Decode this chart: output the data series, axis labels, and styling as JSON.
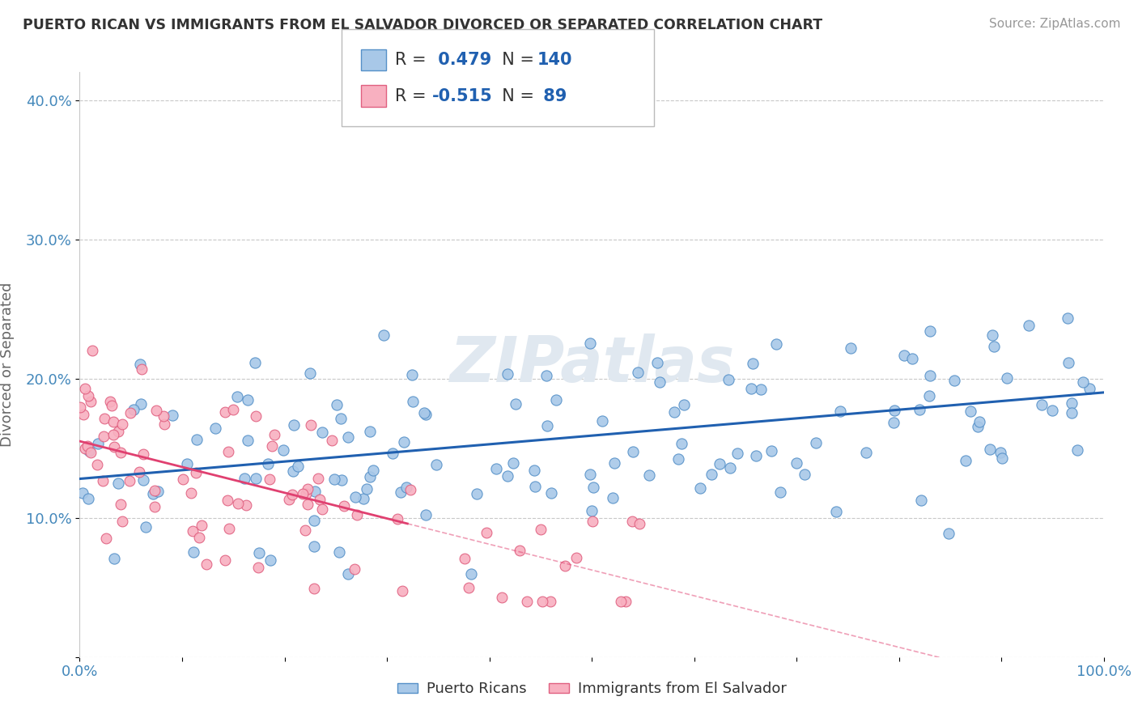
{
  "title": "PUERTO RICAN VS IMMIGRANTS FROM EL SALVADOR DIVORCED OR SEPARATED CORRELATION CHART",
  "source": "Source: ZipAtlas.com",
  "ylabel": "Divorced or Separated",
  "xlabel": "",
  "xlim": [
    0.0,
    1.0
  ],
  "ylim": [
    0.0,
    0.42
  ],
  "xticks": [
    0.0,
    0.1,
    0.2,
    0.3,
    0.4,
    0.5,
    0.6,
    0.7,
    0.8,
    0.9,
    1.0
  ],
  "yticks": [
    0.0,
    0.1,
    0.2,
    0.3,
    0.4
  ],
  "blue_color": "#a8c8e8",
  "blue_edge_color": "#5590c8",
  "blue_line_color": "#2060b0",
  "pink_color": "#f8b0c0",
  "pink_edge_color": "#e06080",
  "pink_line_color": "#e04070",
  "blue_R": 0.479,
  "blue_N": 140,
  "pink_R": -0.515,
  "pink_N": 89,
  "blue_intercept": 0.128,
  "blue_slope": 0.062,
  "pink_intercept": 0.155,
  "pink_slope": -0.185,
  "legend_labels_bottom": [
    "Puerto Ricans",
    "Immigrants from El Salvador"
  ],
  "watermark": "ZIPatlas",
  "background_color": "#ffffff",
  "grid_color": "#c8c8c8",
  "title_color": "#333333",
  "source_color": "#999999",
  "tick_color": "#4488bb",
  "ylabel_color": "#666666"
}
